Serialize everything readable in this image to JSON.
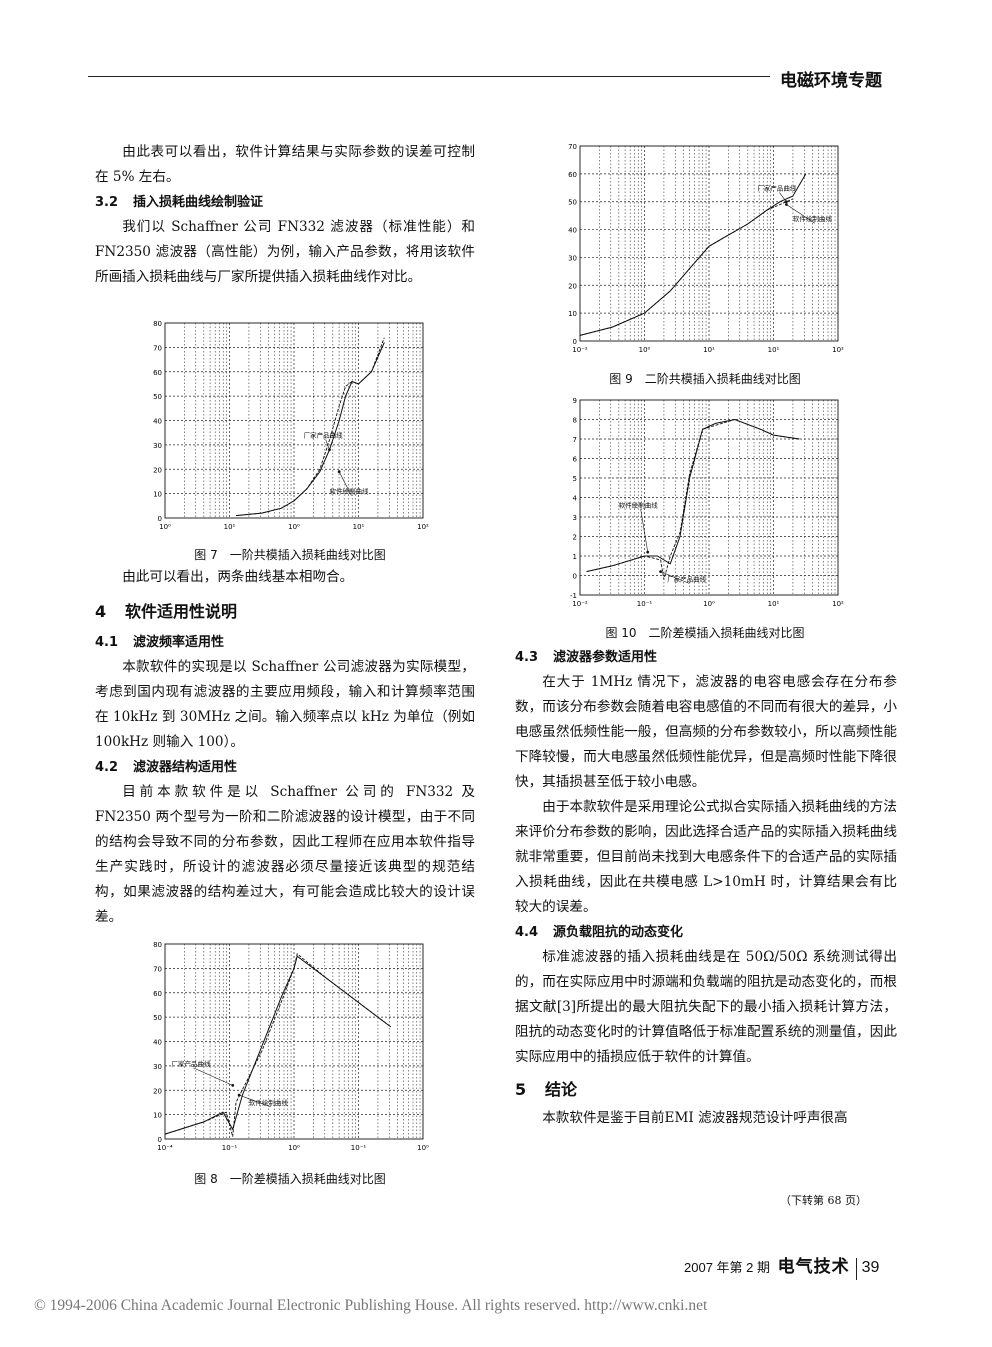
{
  "header": {
    "title": "电磁环境专题"
  },
  "left": {
    "p1": "由此表可以看出，软件计算结果与实际参数的误差可控制在 5% 左右。",
    "s32": {
      "num": "3.2",
      "title": "插入损耗曲线绘制验证"
    },
    "p2": "我们以 Schaffner 公司 FN332 滤波器（标准性能）和 FN2350 滤波器（高性能）为例，输入产品参数，将用该软件所画插入损耗曲线与厂家所提供插入损耗曲线作对比。",
    "fig7_caption": "图 7　一阶共模插入损耗曲线对比图",
    "p3": "由此可以看出，两条曲线基本相吻合。",
    "s4": {
      "num": "4",
      "title": "软件适用性说明"
    },
    "s41": {
      "num": "4.1",
      "title": "滤波频率适用性"
    },
    "p4": "本款软件的实现是以 Schaffner 公司滤波器为实际模型，考虑到国内现有滤波器的主要应用频段，输入和计算频率范围在 10kHz 到 30MHz 之间。输入频率点以 kHz 为单位（例如 100kHz 则输入 100）。",
    "s42": {
      "num": "4.2",
      "title": "滤波器结构适用性"
    },
    "p5": "目前本款软件是以 Schaffner 公司的 FN332 及 FN2350 两个型号为一阶和二阶滤波器的设计模型，由于不同的结构会导致不同的分布参数，因此工程师在应用本软件指导生产实践时，所设计的滤波器必须尽量接近该典型的规范结构，如果滤波器的结构差过大，有可能会造成比较大的设计误差。",
    "fig8_caption": "图 8　一阶差模插入损耗曲线对比图"
  },
  "right": {
    "fig9_caption": "图 9　二阶共模插入损耗曲线对比图",
    "fig10_caption": "图 10　二阶差模插入损耗曲线对比图",
    "s43": {
      "num": "4.3",
      "title": "滤波器参数适用性"
    },
    "p6": "在大于 1MHz 情况下，滤波器的电容电感会存在分布参数，而该分布参数会随着电容电感值的不同而有很大的差异，小电感虽然低频性能一般，但高频的分布参数较小，所以高频性能下降较慢，而大电感虽然低频性能优异，但是高频时性能下降很快，其插损甚至低于较小电感。",
    "p7": "由于本款软件是采用理论公式拟合实际插入损耗曲线的方法来评价分布参数的影响，因此选择合适产品的实际插入损耗曲线就非常重要，但目前尚未找到大电感条件下的合适产品的实际插入损耗曲线，因此在共模电感 L>10mH 时，计算结果会有比较大的误差。",
    "s44": {
      "num": "4.4",
      "title": "源负载阻抗的动态变化"
    },
    "p8": "标准滤波器的插入损耗曲线是在 50Ω/50Ω 系统测试得出的，而在实际应用中时源端和负载端的阻抗是动态变化的，而根据文献[3]所提出的最大阻抗失配下的最小插入损耗计算方法，阻抗的动态变化时的计算值略低于标准配置系统的测量值，因此实际应用中的插损应低于软件的计算值。",
    "s5": {
      "num": "5",
      "title": "结论"
    },
    "p9": "本款软件是鉴于目前EMI 滤波器规范设计呼声很高",
    "cont": "（下转第 68 页）"
  },
  "footer": {
    "issue": "2007 年第 2 期",
    "journal": "电气技术",
    "page": "39"
  },
  "copyright": "© 1994-2006 China Academic Journal Electronic Publishing House. All rights reserved.    http://www.cnki.net",
  "chart_data": [
    {
      "id": "fig7",
      "type": "line",
      "x_ticks": [
        "10⁰",
        "10¹",
        "10⁰",
        "10¹",
        "10²"
      ],
      "y_ticks": [
        "0",
        "10",
        "20",
        "30",
        "40",
        "50",
        "60",
        "70",
        "80"
      ],
      "ylim": [
        0,
        80
      ],
      "xlim_decades": [
        -2,
        2
      ],
      "annotations": [
        "厂家产品曲线",
        "软件绘制曲线"
      ],
      "series": [
        {
          "x": [
            -0.9,
            -0.5,
            -0.2,
            0.0,
            0.2,
            0.4,
            0.55,
            0.7,
            0.8,
            0.9,
            1.0,
            1.2,
            1.4
          ],
          "y": [
            1,
            2,
            4,
            7,
            12,
            19,
            28,
            40,
            50,
            56,
            55,
            60,
            72
          ]
        },
        {
          "x": [
            -0.9,
            -0.5,
            -0.2,
            0.0,
            0.2,
            0.4,
            0.55,
            0.7,
            0.8,
            0.9,
            1.0,
            1.2,
            1.4
          ],
          "y": [
            1,
            2,
            4,
            7,
            12,
            20,
            32,
            46,
            54,
            56,
            55,
            60,
            74
          ]
        }
      ]
    },
    {
      "id": "fig8",
      "type": "line",
      "x_ticks": [
        "10⁻⁴",
        "10⁻¹",
        "10⁰",
        "10⁻¹",
        "10⁰"
      ],
      "y_ticks": [
        "0",
        "10",
        "20",
        "30",
        "40",
        "50",
        "60",
        "70",
        "80"
      ],
      "ylim": [
        0,
        80
      ],
      "xlim_decades": [
        -2,
        2
      ],
      "annotations": [
        "厂家产品曲线",
        "软件绘制曲线"
      ],
      "series": [
        {
          "x": [
            -2.0,
            -1.4,
            -1.1,
            -0.95,
            -0.8,
            -0.5,
            -0.2,
            0.0,
            0.05,
            0.5,
            1.0,
            1.5
          ],
          "y": [
            2,
            7,
            11,
            4,
            18,
            38,
            58,
            70,
            75,
            66,
            56,
            46
          ]
        },
        {
          "x": [
            -2.0,
            -1.4,
            -1.05,
            -0.95,
            -0.9,
            -0.5,
            -0.2,
            0.0,
            0.05,
            0.5,
            1.0,
            1.5
          ],
          "y": [
            2,
            7,
            11,
            1,
            15,
            36,
            56,
            70,
            76,
            66,
            56,
            46
          ]
        }
      ]
    },
    {
      "id": "fig9",
      "type": "line",
      "x_ticks": [
        "10⁻²",
        "10⁰",
        "10¹",
        "10¹",
        "10²"
      ],
      "y_ticks": [
        "0",
        "10",
        "20",
        "30",
        "40",
        "50",
        "60",
        "70"
      ],
      "ylim": [
        0,
        70
      ],
      "xlim_decades": [
        -2,
        2
      ],
      "annotations": [
        "厂家产品曲线",
        "软件绘制曲线"
      ],
      "series": [
        {
          "x": [
            -2.0,
            -1.5,
            -1.0,
            -0.6,
            -0.3,
            0.0,
            0.3,
            0.6,
            0.9,
            1.1,
            1.3,
            1.5
          ],
          "y": [
            2,
            5,
            10,
            18,
            26,
            34,
            38,
            42,
            47,
            50,
            52,
            60
          ]
        },
        {
          "x": [
            -2.0,
            -1.5,
            -1.0,
            -0.6,
            -0.3,
            0.0,
            0.3,
            0.6,
            0.9,
            1.1,
            1.3
          ],
          "y": [
            2,
            5,
            10,
            18,
            26,
            34,
            38,
            42,
            47,
            49,
            51
          ]
        }
      ]
    },
    {
      "id": "fig10",
      "type": "line",
      "x_ticks": [
        "10⁻²",
        "10⁻¹",
        "10⁰",
        "10¹",
        "10²"
      ],
      "y_ticks": [
        "-1",
        "0",
        "1",
        "2",
        "3",
        "4",
        "5",
        "6",
        "7",
        "8",
        "9"
      ],
      "ylim": [
        -10,
        90
      ],
      "xlim_decades": [
        -2,
        2
      ],
      "annotations": [
        "软件绘制曲线",
        "厂家产品曲线"
      ],
      "series": [
        {
          "x": [
            -1.9,
            -1.5,
            -1.0,
            -0.8,
            -0.6,
            -0.45,
            -0.3,
            -0.1,
            0.1,
            0.4,
            0.8,
            1.0,
            1.4
          ],
          "y": [
            2,
            5,
            10,
            10,
            6,
            20,
            50,
            75,
            78,
            80,
            75,
            72,
            70
          ]
        },
        {
          "x": [
            -1.9,
            -1.5,
            -1.0,
            -0.75,
            -0.7,
            -0.6,
            -0.45,
            -0.3,
            -0.1,
            0.1,
            0.4,
            0.8,
            1.0,
            1.4
          ],
          "y": [
            2,
            5,
            10,
            8,
            -2,
            10,
            22,
            52,
            75,
            77,
            80,
            75,
            72,
            70
          ]
        }
      ]
    }
  ]
}
